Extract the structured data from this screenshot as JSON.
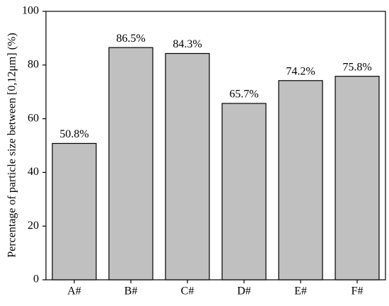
{
  "chart_data": {
    "type": "bar",
    "ylabel": "Percentage of particle size between  [0,12μm] (%)",
    "categories": [
      "A#",
      "B#",
      "C#",
      "D#",
      "E#",
      "F#"
    ],
    "values": [
      50.8,
      86.5,
      84.3,
      65.7,
      74.2,
      75.8
    ],
    "value_labels": [
      "50.8%",
      "86.5%",
      "84.3%",
      "65.7%",
      "74.2%",
      "75.8%"
    ],
    "color": "#c0c0c0",
    "ylim": [
      0,
      100
    ],
    "yticks": [
      0,
      20,
      40,
      60,
      80,
      100
    ],
    "grid": false
  }
}
